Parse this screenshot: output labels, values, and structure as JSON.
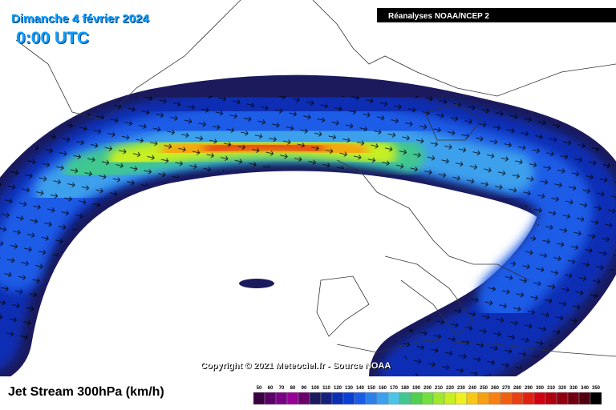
{
  "header": {
    "date": "Dimanche 4 février 2024",
    "time": "0:00 UTC",
    "source_box": "Réanalyses NOAA/NCEP 2"
  },
  "copyright": "Copyright © 2021 Meteociel.fr - Source NOAA",
  "legend": {
    "title": "Jet Stream 300hPa (km/h)",
    "labels": [
      50,
      60,
      70,
      80,
      90,
      100,
      110,
      120,
      130,
      140,
      150,
      160,
      170,
      180,
      190,
      200,
      210,
      220,
      230,
      240,
      250,
      260,
      270,
      280,
      290,
      300,
      310,
      320,
      330,
      340,
      350
    ],
    "colors": [
      "#3a0040",
      "#5a0068",
      "#7a0088",
      "#960096",
      "#6a006a",
      "#1a1a5c",
      "#14207a",
      "#0b2fb4",
      "#0a3fd6",
      "#1a5ce6",
      "#2a80ea",
      "#3ca0ec",
      "#4cc4e8",
      "#40c890",
      "#50d050",
      "#70e040",
      "#a0e830",
      "#c8f020",
      "#f0f020",
      "#f8c818",
      "#f8a010",
      "#f88010",
      "#f06010",
      "#e84010",
      "#e02010",
      "#d00010",
      "#b00010",
      "#900010",
      "#700010",
      "#500010",
      "#000000"
    ]
  }
}
